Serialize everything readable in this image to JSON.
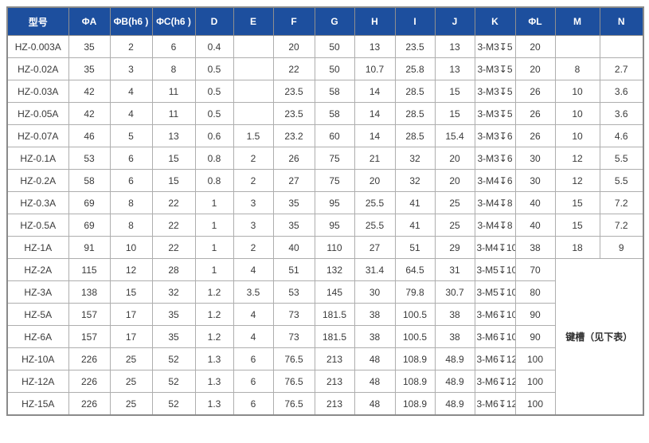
{
  "table": {
    "columns": [
      "型号",
      "ΦA",
      "ΦB(h6 )",
      "ΦC(h6 )",
      "D",
      "E",
      "F",
      "G",
      "H",
      "I",
      "J",
      "K",
      "ΦL",
      "M",
      "N"
    ],
    "rows": [
      {
        "cells": [
          "HZ-0.003A",
          "35",
          "2",
          "6",
          "0.4",
          "",
          "20",
          "50",
          "13",
          "23.5",
          "13",
          "3-M3↧5",
          "20",
          "",
          ""
        ]
      },
      {
        "cells": [
          "HZ-0.02A",
          "35",
          "3",
          "8",
          "0.5",
          "",
          "22",
          "50",
          "10.7",
          "25.8",
          "13",
          "3-M3↧5",
          "20",
          "8",
          "2.7"
        ]
      },
      {
        "cells": [
          "HZ-0.03A",
          "42",
          "4",
          "11",
          "0.5",
          "",
          "23.5",
          "58",
          "14",
          "28.5",
          "15",
          "3-M3↧5",
          "26",
          "10",
          "3.6"
        ]
      },
      {
        "cells": [
          "HZ-0.05A",
          "42",
          "4",
          "11",
          "0.5",
          "",
          "23.5",
          "58",
          "14",
          "28.5",
          "15",
          "3-M3↧5",
          "26",
          "10",
          "3.6"
        ]
      },
      {
        "cells": [
          "HZ-0.07A",
          "46",
          "5",
          "13",
          "0.6",
          "1.5",
          "23.2",
          "60",
          "14",
          "28.5",
          "15.4",
          "3-M3↧6",
          "26",
          "10",
          "4.6"
        ]
      },
      {
        "cells": [
          "HZ-0.1A",
          "53",
          "6",
          "15",
          "0.8",
          "2",
          "26",
          "75",
          "21",
          "32",
          "20",
          "3-M3↧6",
          "30",
          "12",
          "5.5"
        ]
      },
      {
        "cells": [
          "HZ-0.2A",
          "58",
          "6",
          "15",
          "0.8",
          "2",
          "27",
          "75",
          "20",
          "32",
          "20",
          "3-M4↧6",
          "30",
          "12",
          "5.5"
        ]
      },
      {
        "cells": [
          "HZ-0.3A",
          "69",
          "8",
          "22",
          "1",
          "3",
          "35",
          "95",
          "25.5",
          "41",
          "25",
          "3-M4↧8",
          "40",
          "15",
          "7.2"
        ]
      },
      {
        "cells": [
          "HZ-0.5A",
          "69",
          "8",
          "22",
          "1",
          "3",
          "35",
          "95",
          "25.5",
          "41",
          "25",
          "3-M4↧8",
          "40",
          "15",
          "7.2"
        ]
      },
      {
        "cells": [
          "HZ-1A",
          "91",
          "10",
          "22",
          "1",
          "2",
          "40",
          "110",
          "27",
          "51",
          "29",
          "3-M4↧10",
          "38",
          "18",
          "9"
        ]
      },
      {
        "cells": [
          "HZ-2A",
          "115",
          "12",
          "28",
          "1",
          "4",
          "51",
          "132",
          "31.4",
          "64.5",
          "31",
          "3-M5↧10",
          "70"
        ],
        "merge": true
      },
      {
        "cells": [
          "HZ-3A",
          "138",
          "15",
          "32",
          "1.2",
          "3.5",
          "53",
          "145",
          "30",
          "79.8",
          "30.7",
          "3-M5↧10",
          "80"
        ]
      },
      {
        "cells": [
          "HZ-5A",
          "157",
          "17",
          "35",
          "1.2",
          "4",
          "73",
          "181.5",
          "38",
          "100.5",
          "38",
          "3-M6↧10",
          "90"
        ]
      },
      {
        "cells": [
          "HZ-6A",
          "157",
          "17",
          "35",
          "1.2",
          "4",
          "73",
          "181.5",
          "38",
          "100.5",
          "38",
          "3-M6↧10",
          "90"
        ]
      },
      {
        "cells": [
          "HZ-10A",
          "226",
          "25",
          "52",
          "1.3",
          "6",
          "76.5",
          "213",
          "48",
          "108.9",
          "48.9",
          "3-M6↧12",
          "100"
        ]
      },
      {
        "cells": [
          "HZ-12A",
          "226",
          "25",
          "52",
          "1.3",
          "6",
          "76.5",
          "213",
          "48",
          "108.9",
          "48.9",
          "3-M6↧12",
          "100"
        ]
      },
      {
        "cells": [
          "HZ-15A",
          "226",
          "25",
          "52",
          "1.3",
          "6",
          "76.5",
          "213",
          "48",
          "108.9",
          "48.9",
          "3-M6↧12",
          "100"
        ]
      }
    ],
    "merged_cell": {
      "label": "键槽（见下表）",
      "rowspan": 7,
      "colspan": 2
    },
    "colors": {
      "header_bg": "#1d4f9e",
      "header_text": "#ffffff",
      "body_text": "#3a3a3a",
      "grid_line": "#aeaeae",
      "outer_border": "#8a8a8a"
    }
  }
}
